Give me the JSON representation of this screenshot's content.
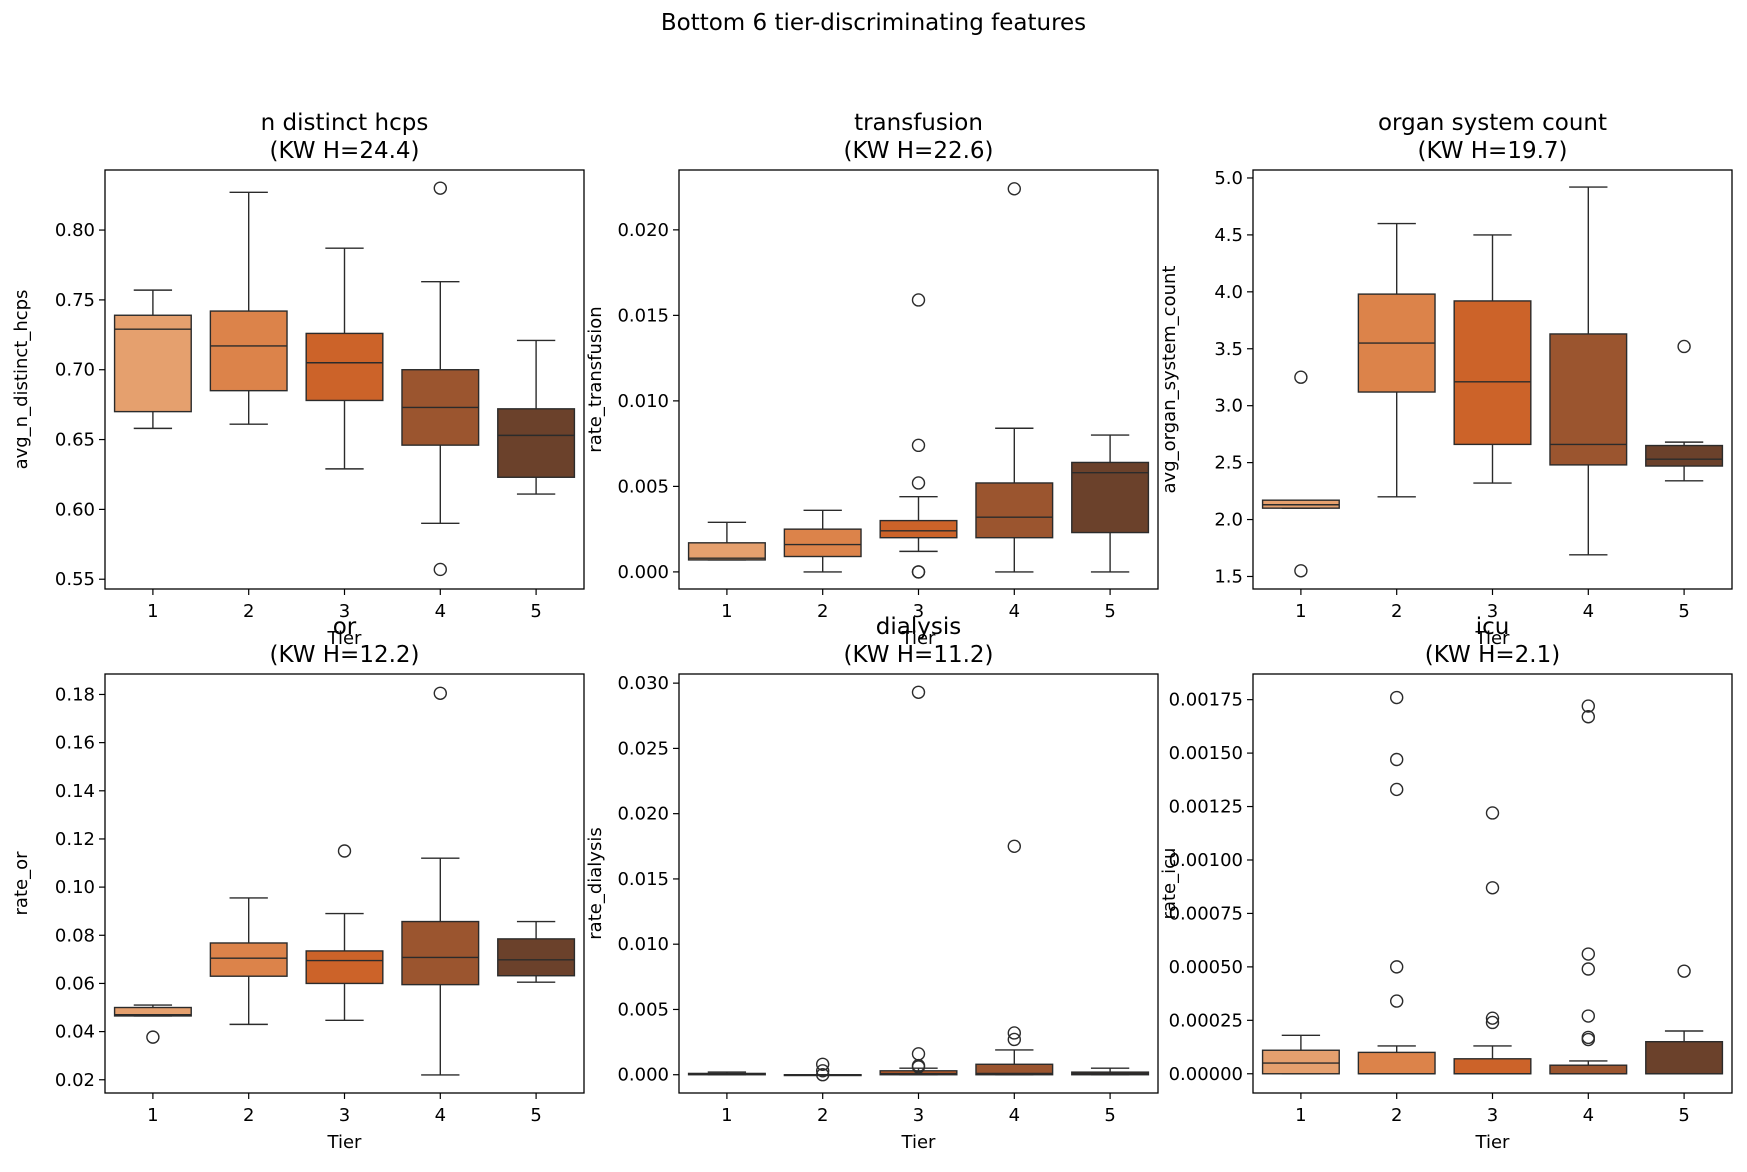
{
  "figure_title": "Bottom 6 tier-discriminating features",
  "colors": {
    "tier_1": "#e5a06e",
    "tier_2": "#dc834a",
    "tier_3": "#cc6329",
    "tier_4": "#9b552f",
    "tier_5": "#6b412b",
    "line": "#2b2b2b"
  },
  "chart_data": [
    {
      "type": "box",
      "title": "n distinct hcps",
      "subtitle": "(KW H=24.4)",
      "xlabel": "Tier",
      "ylabel": "avg_n_distinct_hcps",
      "categories": [
        "1",
        "2",
        "3",
        "4",
        "5"
      ],
      "ylim": [
        0.543,
        0.843
      ],
      "yticks": [
        0.55,
        0.6,
        0.65,
        0.7,
        0.75,
        0.8
      ],
      "ytick_labels": [
        "0.55",
        "0.60",
        "0.65",
        "0.70",
        "0.75",
        "0.80"
      ],
      "boxes": [
        {
          "whislo": 0.658,
          "q1": 0.67,
          "med": 0.729,
          "q3": 0.739,
          "whishi": 0.757,
          "fliers": []
        },
        {
          "whislo": 0.661,
          "q1": 0.685,
          "med": 0.717,
          "q3": 0.742,
          "whishi": 0.827,
          "fliers": []
        },
        {
          "whislo": 0.629,
          "q1": 0.678,
          "med": 0.705,
          "q3": 0.726,
          "whishi": 0.787,
          "fliers": []
        },
        {
          "whislo": 0.59,
          "q1": 0.646,
          "med": 0.673,
          "q3": 0.7,
          "whishi": 0.763,
          "fliers": [
            0.83,
            0.557
          ]
        },
        {
          "whislo": 0.611,
          "q1": 0.623,
          "med": 0.653,
          "q3": 0.672,
          "whishi": 0.721,
          "fliers": []
        }
      ]
    },
    {
      "type": "box",
      "title": "transfusion",
      "subtitle": "(KW H=22.6)",
      "xlabel": "Tier",
      "ylabel": "rate_transfusion",
      "categories": [
        "1",
        "2",
        "3",
        "4",
        "5"
      ],
      "ylim": [
        -0.001,
        0.0235
      ],
      "yticks": [
        0,
        0.005,
        0.01,
        0.015,
        0.02
      ],
      "ytick_labels": [
        "0.000",
        "0.005",
        "0.010",
        "0.015",
        "0.020"
      ],
      "boxes": [
        {
          "whislo": 0.0007,
          "q1": 0.0007,
          "med": 0.0008,
          "q3": 0.0017,
          "whishi": 0.0029,
          "fliers": []
        },
        {
          "whislo": 0.0,
          "q1": 0.0009,
          "med": 0.0016,
          "q3": 0.0025,
          "whishi": 0.0036,
          "fliers": []
        },
        {
          "whislo": 0.0012,
          "q1": 0.002,
          "med": 0.0024,
          "q3": 0.003,
          "whishi": 0.0044,
          "fliers": [
            0.0159,
            0.0074,
            0.0052,
            0.0,
            0.0
          ]
        },
        {
          "whislo": 0.0,
          "q1": 0.002,
          "med": 0.0032,
          "q3": 0.0052,
          "whishi": 0.0084,
          "fliers": [
            0.0224
          ]
        },
        {
          "whislo": 0.0,
          "q1": 0.0023,
          "med": 0.0058,
          "q3": 0.0064,
          "whishi": 0.008,
          "fliers": []
        }
      ]
    },
    {
      "type": "box",
      "title": "organ system count",
      "subtitle": "(KW H=19.7)",
      "xlabel": "Tier",
      "ylabel": "avg_organ_system_count",
      "categories": [
        "1",
        "2",
        "3",
        "4",
        "5"
      ],
      "ylim": [
        1.39,
        5.07
      ],
      "yticks": [
        1.5,
        2.0,
        2.5,
        3.0,
        3.5,
        4.0,
        4.5,
        5.0
      ],
      "ytick_labels": [
        "1.5",
        "2.0",
        "2.5",
        "3.0",
        "3.5",
        "4.0",
        "4.5",
        "5.0"
      ],
      "boxes": [
        {
          "whislo": 2.1,
          "q1": 2.1,
          "med": 2.13,
          "q3": 2.17,
          "whishi": 2.17,
          "fliers": [
            3.25,
            1.55
          ]
        },
        {
          "whislo": 2.2,
          "q1": 3.12,
          "med": 3.55,
          "q3": 3.98,
          "whishi": 4.6,
          "fliers": []
        },
        {
          "whislo": 2.32,
          "q1": 2.66,
          "med": 3.21,
          "q3": 3.92,
          "whishi": 4.5,
          "fliers": []
        },
        {
          "whislo": 1.69,
          "q1": 2.48,
          "med": 2.66,
          "q3": 3.63,
          "whishi": 4.92,
          "fliers": []
        },
        {
          "whislo": 2.34,
          "q1": 2.47,
          "med": 2.53,
          "q3": 2.65,
          "whishi": 2.68,
          "fliers": [
            3.52
          ]
        }
      ]
    },
    {
      "type": "box",
      "title": "or",
      "subtitle": "(KW H=12.2)",
      "xlabel": "Tier",
      "ylabel": "rate_or",
      "categories": [
        "1",
        "2",
        "3",
        "4",
        "5"
      ],
      "ylim": [
        0.0145,
        0.1885
      ],
      "yticks": [
        0.02,
        0.04,
        0.06,
        0.08,
        0.1,
        0.12,
        0.14,
        0.16,
        0.18
      ],
      "ytick_labels": [
        "0.02",
        "0.04",
        "0.06",
        "0.08",
        "0.10",
        "0.12",
        "0.14",
        "0.16",
        "0.18"
      ],
      "boxes": [
        {
          "whislo": 0.0465,
          "q1": 0.0465,
          "med": 0.047,
          "q3": 0.05,
          "whishi": 0.051,
          "fliers": [
            0.0377
          ]
        },
        {
          "whislo": 0.043,
          "q1": 0.063,
          "med": 0.0705,
          "q3": 0.0768,
          "whishi": 0.0955,
          "fliers": []
        },
        {
          "whislo": 0.0447,
          "q1": 0.06,
          "med": 0.0695,
          "q3": 0.0735,
          "whishi": 0.089,
          "fliers": [
            0.115
          ]
        },
        {
          "whislo": 0.022,
          "q1": 0.0595,
          "med": 0.0708,
          "q3": 0.0857,
          "whishi": 0.112,
          "fliers": [
            0.1805
          ]
        },
        {
          "whislo": 0.0605,
          "q1": 0.0632,
          "med": 0.0698,
          "q3": 0.0785,
          "whishi": 0.0857,
          "fliers": []
        }
      ]
    },
    {
      "type": "box",
      "title": "dialysis",
      "subtitle": "(KW H=11.2)",
      "xlabel": "Tier",
      "ylabel": "rate_dialysis",
      "categories": [
        "1",
        "2",
        "3",
        "4",
        "5"
      ],
      "ylim": [
        -0.0014,
        0.0307
      ],
      "yticks": [
        0,
        0.005,
        0.01,
        0.015,
        0.02,
        0.025,
        0.03
      ],
      "ytick_labels": [
        "0.000",
        "0.005",
        "0.010",
        "0.015",
        "0.020",
        "0.025",
        "0.030"
      ],
      "boxes": [
        {
          "whislo": 0.0,
          "q1": 0.0,
          "med": 5e-05,
          "q3": 0.0001,
          "whishi": 0.0002,
          "fliers": []
        },
        {
          "whislo": 0.0,
          "q1": 0.0,
          "med": 0.0,
          "q3": 0.0,
          "whishi": 0.0,
          "fliers": [
            0.0008,
            0.0003,
            0.0
          ]
        },
        {
          "whislo": 0.0,
          "q1": 0.0,
          "med": 0.0001,
          "q3": 0.0003,
          "whishi": 0.0005,
          "fliers": [
            0.0293,
            0.0016,
            0.0007,
            0.0006
          ]
        },
        {
          "whislo": 0.0,
          "q1": 0.0,
          "med": 0.0001,
          "q3": 0.0008,
          "whishi": 0.0019,
          "fliers": [
            0.0175,
            0.0032,
            0.0027
          ]
        },
        {
          "whislo": 0.0,
          "q1": 0.0,
          "med": 0.0001,
          "q3": 0.0002,
          "whishi": 0.0005,
          "fliers": []
        }
      ]
    },
    {
      "type": "box",
      "title": "icu",
      "subtitle": "(KW H=2.1)",
      "xlabel": "Tier",
      "ylabel": "rate_icu",
      "categories": [
        "1",
        "2",
        "3",
        "4",
        "5"
      ],
      "ylim": [
        -9e-05,
        0.00187
      ],
      "yticks": [
        0,
        0.00025,
        0.0005,
        0.00075,
        0.001,
        0.00125,
        0.0015,
        0.00175
      ],
      "ytick_labels": [
        "0.00000",
        "0.00025",
        "0.00050",
        "0.00075",
        "0.00100",
        "0.00125",
        "0.00150",
        "0.00175"
      ],
      "boxes": [
        {
          "whislo": 0.0,
          "q1": 0.0,
          "med": 5e-05,
          "q3": 0.00011,
          "whishi": 0.00018,
          "fliers": []
        },
        {
          "whislo": 0.0,
          "q1": 0.0,
          "med": 0.0,
          "q3": 0.0001,
          "whishi": 0.00013,
          "fliers": [
            0.00176,
            0.00147,
            0.00133,
            0.0005,
            0.00034
          ]
        },
        {
          "whislo": 0.0,
          "q1": 0.0,
          "med": 0.0,
          "q3": 7e-05,
          "whishi": 0.00013,
          "fliers": [
            0.00122,
            0.00087,
            0.00026,
            0.00024
          ]
        },
        {
          "whislo": 0.0,
          "q1": 0.0,
          "med": 0.0,
          "q3": 4e-05,
          "whishi": 6e-05,
          "fliers": [
            0.00172,
            0.00167,
            0.00056,
            0.00049,
            0.00027,
            0.00017,
            0.00016
          ]
        },
        {
          "whislo": 0.0,
          "q1": 0.0,
          "med": 0.0,
          "q3": 0.00015,
          "whishi": 0.0002,
          "fliers": [
            0.00048
          ]
        }
      ]
    }
  ]
}
